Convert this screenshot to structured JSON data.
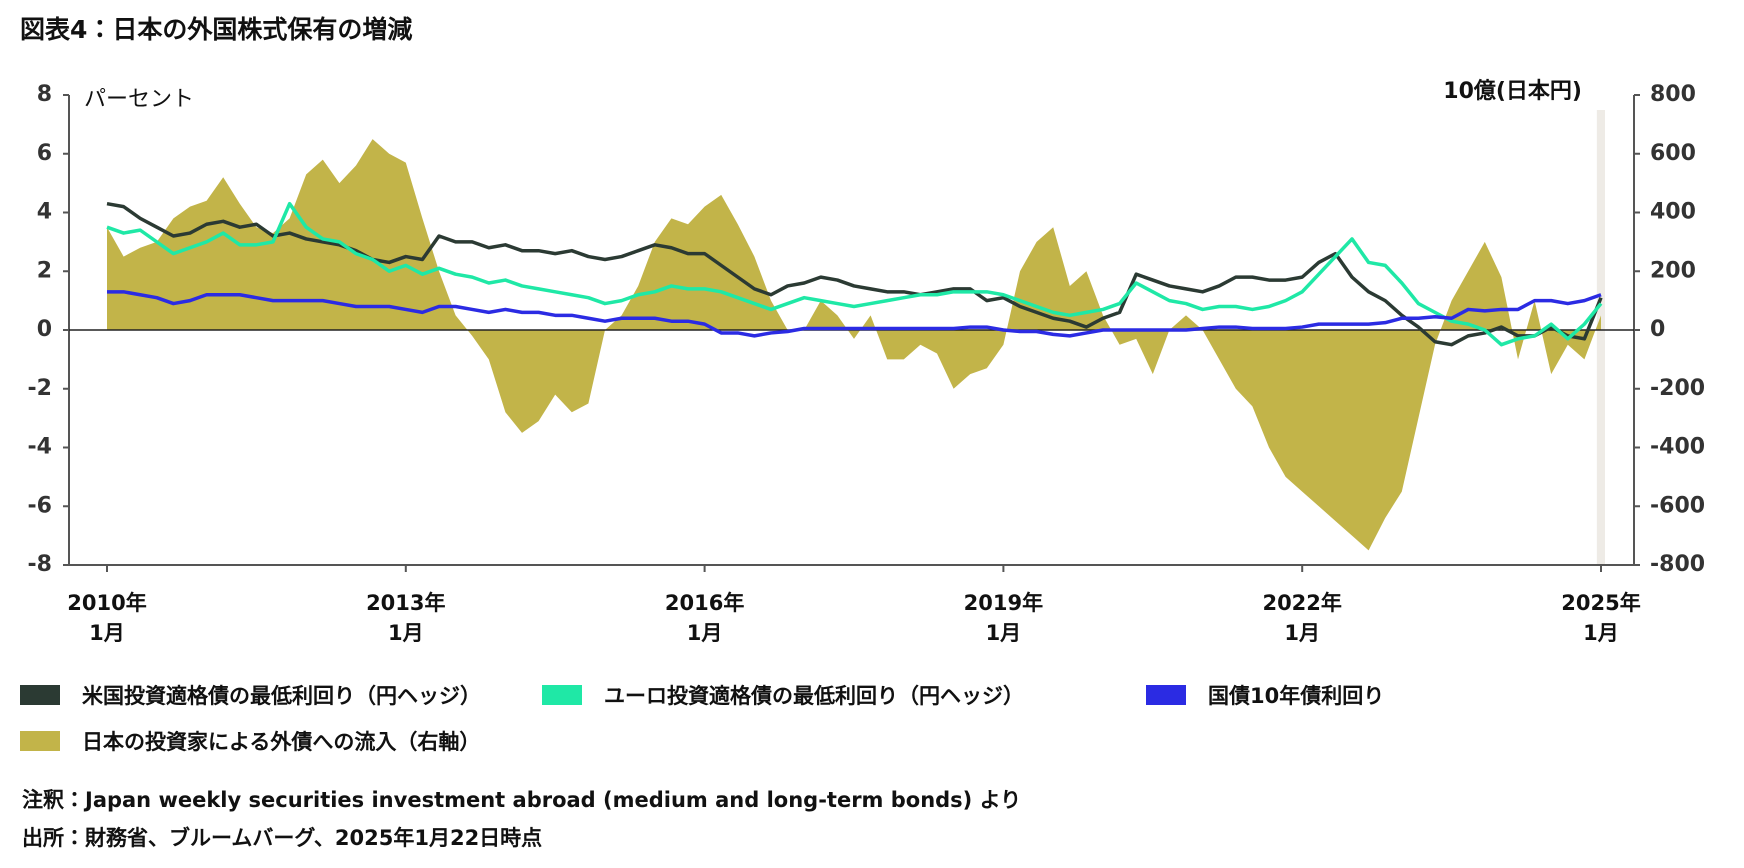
{
  "chart_data": {
    "type": "line",
    "title": "図表4：日本の外国株式保有の増減",
    "ylabel": "パーセント",
    "y2label": "10億(日本円)",
    "categories": [
      "2010年\n1月",
      null,
      null,
      null,
      null,
      null,
      null,
      null,
      null,
      null,
      null,
      null,
      null,
      null,
      null,
      null,
      null,
      null,
      "2013年\n1月",
      null,
      null,
      null,
      null,
      null,
      null,
      null,
      null,
      null,
      null,
      null,
      null,
      null,
      null,
      null,
      null,
      null,
      "2016年\n1月",
      null,
      null,
      null,
      null,
      null,
      null,
      null,
      null,
      null,
      null,
      null,
      null,
      null,
      null,
      null,
      null,
      null,
      "2019年\n1月",
      null,
      null,
      null,
      null,
      null,
      null,
      null,
      null,
      null,
      null,
      null,
      null,
      null,
      null,
      null,
      null,
      null,
      "2022年\n1月",
      null,
      null,
      null,
      null,
      null,
      null,
      null,
      null,
      null,
      null,
      null,
      null,
      null,
      null,
      null,
      null,
      null,
      "2025年\n1月"
    ],
    "ylim": [
      -8,
      8
    ],
    "yticks": [
      -8,
      -6,
      -4,
      -2,
      0,
      2,
      4,
      6,
      8
    ],
    "y2lim": [
      -800,
      800
    ],
    "y2ticks": [
      -800,
      -600,
      -400,
      -200,
      0,
      200,
      400,
      600,
      800
    ],
    "series": [
      {
        "name": "米国投資適格債の最低利回り（円ヘッジ）",
        "color": "#2b3a33",
        "values": [
          4.3,
          4.2,
          3.8,
          3.5,
          3.2,
          3.3,
          3.6,
          3.7,
          3.5,
          3.6,
          3.2,
          3.3,
          3.1,
          3.0,
          2.9,
          2.7,
          2.4,
          2.3,
          2.5,
          2.4,
          3.2,
          3.0,
          3.0,
          2.8,
          2.9,
          2.7,
          2.7,
          2.6,
          2.7,
          2.5,
          2.4,
          2.5,
          2.7,
          2.9,
          2.8,
          2.6,
          2.6,
          2.2,
          1.8,
          1.4,
          1.2,
          1.5,
          1.6,
          1.8,
          1.7,
          1.5,
          1.4,
          1.3,
          1.3,
          1.2,
          1.3,
          1.4,
          1.4,
          1.0,
          1.1,
          0.8,
          0.6,
          0.4,
          0.3,
          0.1,
          0.4,
          0.6,
          1.9,
          1.7,
          1.5,
          1.4,
          1.3,
          1.5,
          1.8,
          1.8,
          1.7,
          1.7,
          1.8,
          2.3,
          2.6,
          1.8,
          1.3,
          1.0,
          0.5,
          0.1,
          -0.4,
          -0.5,
          -0.2,
          -0.1,
          0.1,
          -0.2,
          -0.2,
          0.1,
          -0.2,
          -0.3,
          1.1
        ]
      },
      {
        "name": "ユーロ投資適格債の最低利回り（円ヘッジ）",
        "color": "#1fe8a6",
        "values": [
          3.5,
          3.3,
          3.4,
          3.0,
          2.6,
          2.8,
          3.0,
          3.3,
          2.9,
          2.9,
          3.0,
          4.3,
          3.5,
          3.1,
          3.0,
          2.6,
          2.4,
          2.0,
          2.2,
          1.9,
          2.1,
          1.9,
          1.8,
          1.6,
          1.7,
          1.5,
          1.4,
          1.3,
          1.2,
          1.1,
          0.9,
          1.0,
          1.2,
          1.3,
          1.5,
          1.4,
          1.4,
          1.3,
          1.1,
          0.9,
          0.7,
          0.9,
          1.1,
          1.0,
          0.9,
          0.8,
          0.9,
          1.0,
          1.1,
          1.2,
          1.2,
          1.3,
          1.3,
          1.3,
          1.2,
          1.0,
          0.8,
          0.6,
          0.5,
          0.6,
          0.7,
          0.9,
          1.6,
          1.3,
          1.0,
          0.9,
          0.7,
          0.8,
          0.8,
          0.7,
          0.8,
          1.0,
          1.3,
          1.9,
          2.5,
          3.1,
          2.3,
          2.2,
          1.6,
          0.9,
          0.6,
          0.3,
          0.2,
          0.0,
          -0.5,
          -0.3,
          -0.2,
          0.2,
          -0.3,
          0.2,
          0.9
        ]
      },
      {
        "name": "国債10年債利回り",
        "color": "#2b2be3",
        "values": [
          1.3,
          1.3,
          1.2,
          1.1,
          0.9,
          1.0,
          1.2,
          1.2,
          1.2,
          1.1,
          1.0,
          1.0,
          1.0,
          1.0,
          0.9,
          0.8,
          0.8,
          0.8,
          0.7,
          0.6,
          0.8,
          0.8,
          0.7,
          0.6,
          0.7,
          0.6,
          0.6,
          0.5,
          0.5,
          0.4,
          0.3,
          0.4,
          0.4,
          0.4,
          0.3,
          0.3,
          0.2,
          -0.1,
          -0.1,
          -0.2,
          -0.1,
          -0.05,
          0.05,
          0.05,
          0.05,
          0.05,
          0.05,
          0.05,
          0.05,
          0.05,
          0.05,
          0.05,
          0.1,
          0.1,
          0.0,
          -0.05,
          -0.05,
          -0.15,
          -0.2,
          -0.1,
          0.0,
          0.0,
          0.0,
          0.0,
          0.0,
          0.0,
          0.05,
          0.1,
          0.1,
          0.05,
          0.05,
          0.05,
          0.1,
          0.2,
          0.2,
          0.2,
          0.2,
          0.25,
          0.4,
          0.4,
          0.45,
          0.4,
          0.7,
          0.65,
          0.7,
          0.7,
          1.0,
          1.0,
          0.9,
          1.0,
          1.2
        ]
      },
      {
        "name": "日本の投資家による外債への流入（右軸）",
        "color": "#c2b449",
        "type": "area",
        "axis": "y2",
        "values": [
          350,
          250,
          280,
          300,
          380,
          420,
          440,
          520,
          430,
          350,
          330,
          380,
          530,
          580,
          500,
          560,
          650,
          600,
          570,
          380,
          200,
          50,
          -20,
          -100,
          -280,
          -350,
          -310,
          -220,
          -280,
          -250,
          0,
          50,
          150,
          300,
          380,
          360,
          420,
          460,
          360,
          250,
          100,
          0,
          0,
          100,
          50,
          -30,
          50,
          -100,
          -100,
          -50,
          -80,
          -200,
          -150,
          -130,
          -50,
          200,
          300,
          350,
          150,
          200,
          50,
          -50,
          -30,
          -150,
          0,
          50,
          0,
          -100,
          -200,
          -260,
          -400,
          -500,
          -550,
          -600,
          -650,
          -700,
          -750,
          -640,
          -550,
          -300,
          -50,
          100,
          200,
          300,
          180,
          -100,
          100,
          -150,
          -50,
          -100,
          50
        ]
      }
    ],
    "notes": [
      "注釈：Japan weekly securities investment abroad (medium and long-term bonds) より",
      "出所：財務省、ブルームバーグ、2025年1月22日時点"
    ]
  }
}
